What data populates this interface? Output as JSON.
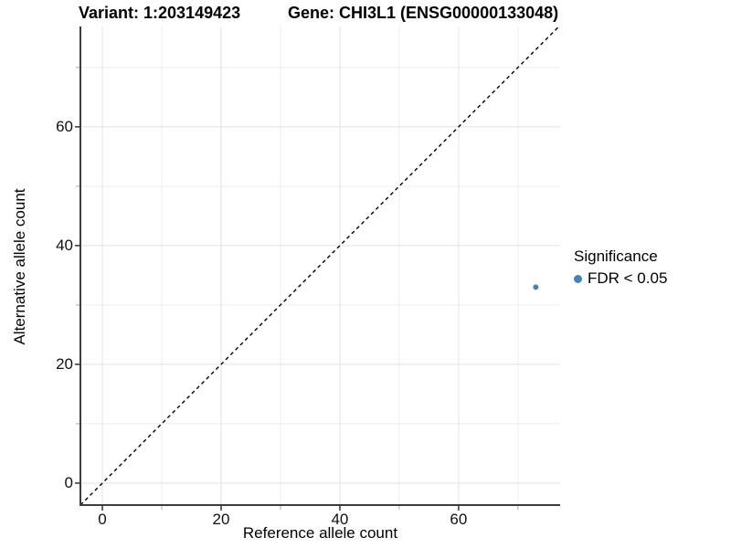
{
  "titles": {
    "variant": "Variant: 1:203149423",
    "gene": "Gene: CHI3L1 (ENSG00000133048)"
  },
  "axes": {
    "x_label": "Reference allele count",
    "y_label": "Alternative allele count"
  },
  "legend": {
    "title": "Significance",
    "items": [
      {
        "label": "FDR < 0.05",
        "color": "#4682B4"
      }
    ]
  },
  "colors": {
    "point": "#4682B4",
    "grid_major": "#e2e2e2",
    "grid_minor": "#ededed",
    "axis_line": "#3c3c3c",
    "tick_major": "#333333",
    "tick_minor": "#aaaaaa",
    "reference_line": "#000000"
  },
  "chart_data": {
    "type": "scatter",
    "title_left": "Variant: 1:203149423",
    "title_right": "Gene: CHI3L1 (ENSG00000133048)",
    "xlabel": "Reference allele count",
    "ylabel": "Alternative allele count",
    "xlim": [
      -3.7,
      77.1
    ],
    "ylim": [
      -3.7,
      76.9
    ],
    "x_major_ticks": [
      0,
      20,
      40,
      60
    ],
    "x_minor_ticks": [
      10,
      30,
      50,
      70
    ],
    "y_major_ticks": [
      0,
      20,
      40,
      60
    ],
    "y_minor_ticks": [
      10,
      30,
      50,
      70
    ],
    "grid": true,
    "legend_position": "right",
    "series": [
      {
        "name": "FDR < 0.05",
        "color": "#4682B4",
        "points": [
          {
            "x": 73,
            "y": 33
          }
        ]
      }
    ],
    "reference_line": {
      "type": "identity",
      "slope": 1,
      "intercept": 0,
      "style": "dashed",
      "color": "#000000"
    }
  }
}
